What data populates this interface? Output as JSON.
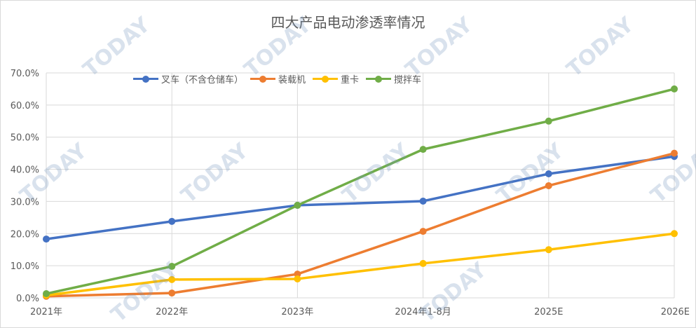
{
  "chart_data": {
    "type": "line",
    "title": "四大产品电动渗透率情况",
    "xlabel": "",
    "ylabel": "",
    "categories": [
      "2021年",
      "2022年",
      "2023年",
      "2024年1-8月",
      "2025E",
      "2026E"
    ],
    "ylim": [
      0,
      70
    ],
    "yticks": [
      "0.0%",
      "10.0%",
      "20.0%",
      "30.0%",
      "40.0%",
      "50.0%",
      "60.0%",
      "70.0%"
    ],
    "grid": true,
    "legend_position": "top",
    "series": [
      {
        "name": "叉车（不含仓储车）",
        "color": "#4472c4",
        "values": [
          18.3,
          23.8,
          28.8,
          30.1,
          38.6,
          44.0
        ]
      },
      {
        "name": "装载机",
        "color": "#ed7d31",
        "values": [
          0.5,
          1.5,
          7.4,
          20.7,
          34.9,
          45.0
        ]
      },
      {
        "name": "重卡",
        "color": "#ffc000",
        "values": [
          0.8,
          5.7,
          5.9,
          10.7,
          15.0,
          20.0
        ]
      },
      {
        "name": "搅拌车",
        "color": "#70ad47",
        "values": [
          1.3,
          9.8,
          28.8,
          46.2,
          55.0,
          65.0
        ]
      }
    ]
  },
  "watermark": "TODAY"
}
